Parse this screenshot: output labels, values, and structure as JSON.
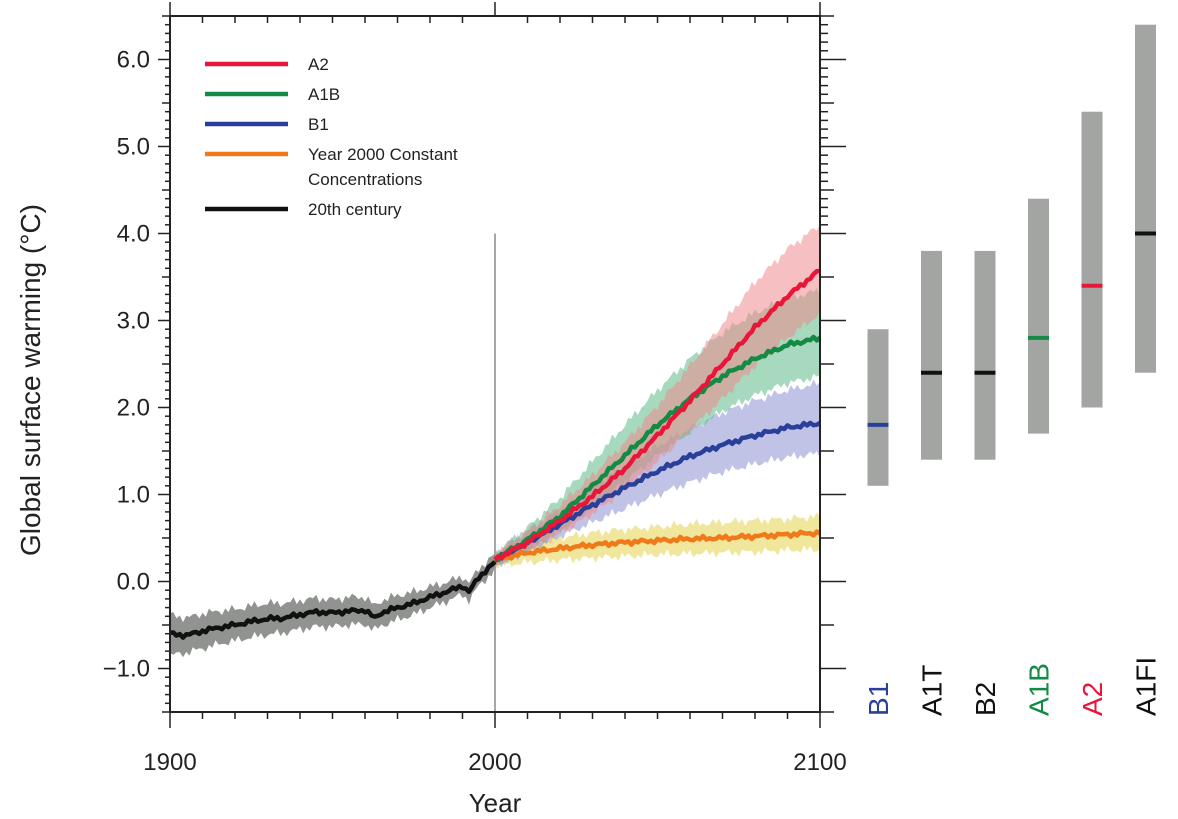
{
  "chart_data": {
    "type": "line",
    "title": "",
    "xlabel": "Year",
    "ylabel": "Global surface warming (°C)",
    "xlim": [
      1900,
      2100
    ],
    "ylim": [
      -1.5,
      6.5
    ],
    "x_ticks": [
      1900,
      2000,
      2100
    ],
    "y_ticks": [
      -1.0,
      0.0,
      1.0,
      2.0,
      3.0,
      4.0,
      5.0,
      6.0
    ],
    "y_tick_labels": [
      "−1.0",
      "0.0",
      "1.0",
      "2.0",
      "3.0",
      "4.0",
      "5.0",
      "6.0"
    ],
    "vertical_marker_year": 2000,
    "legend": [
      {
        "name": "A2",
        "color": "#e8173a"
      },
      {
        "name": "A1B",
        "color": "#148a44"
      },
      {
        "name": "B1",
        "color": "#2a3f99"
      },
      {
        "name": "Year 2000 Constant Concentrations",
        "lines": [
          "Year 2000 Constant",
          "Concentrations"
        ],
        "color": "#f07a1a"
      },
      {
        "name": "20th century",
        "color": "#111111"
      }
    ],
    "series": [
      {
        "name": "20th century",
        "color": "#111111",
        "band_color": "#8a8d8a",
        "x": [
          1900,
          1905,
          1910,
          1915,
          1920,
          1925,
          1930,
          1935,
          1940,
          1945,
          1950,
          1955,
          1960,
          1963,
          1965,
          1970,
          1975,
          1980,
          1985,
          1990,
          1992,
          1995,
          2000
        ],
        "values": [
          -0.6,
          -0.62,
          -0.57,
          -0.53,
          -0.5,
          -0.46,
          -0.43,
          -0.42,
          -0.38,
          -0.35,
          -0.36,
          -0.34,
          -0.33,
          -0.42,
          -0.36,
          -0.3,
          -0.25,
          -0.18,
          -0.12,
          -0.05,
          -0.12,
          0.05,
          0.22
        ],
        "lower": [
          -0.85,
          -0.82,
          -0.77,
          -0.72,
          -0.68,
          -0.64,
          -0.61,
          -0.59,
          -0.55,
          -0.52,
          -0.52,
          -0.5,
          -0.49,
          -0.56,
          -0.51,
          -0.44,
          -0.38,
          -0.3,
          -0.23,
          -0.15,
          -0.22,
          -0.05,
          0.13
        ],
        "upper": [
          -0.38,
          -0.42,
          -0.37,
          -0.34,
          -0.32,
          -0.28,
          -0.25,
          -0.25,
          -0.22,
          -0.19,
          -0.21,
          -0.18,
          -0.18,
          -0.28,
          -0.22,
          -0.16,
          -0.12,
          -0.06,
          -0.01,
          0.06,
          -0.02,
          0.15,
          0.31
        ]
      },
      {
        "name": "Year 2000 Constant Concentrations",
        "color": "#f07a1a",
        "band_color": "#e3d24a",
        "x": [
          2000,
          2010,
          2020,
          2030,
          2040,
          2050,
          2060,
          2070,
          2080,
          2090,
          2100
        ],
        "values": [
          0.25,
          0.33,
          0.38,
          0.42,
          0.45,
          0.47,
          0.49,
          0.5,
          0.52,
          0.54,
          0.56
        ],
        "lower": [
          0.18,
          0.22,
          0.25,
          0.27,
          0.29,
          0.31,
          0.32,
          0.33,
          0.34,
          0.36,
          0.37
        ],
        "upper": [
          0.32,
          0.44,
          0.5,
          0.56,
          0.6,
          0.63,
          0.66,
          0.68,
          0.7,
          0.72,
          0.75
        ]
      },
      {
        "name": "B1",
        "color": "#2a3f99",
        "band_color": "#8c92cf",
        "x": [
          2000,
          2010,
          2020,
          2030,
          2040,
          2050,
          2060,
          2070,
          2080,
          2090,
          2100
        ],
        "values": [
          0.25,
          0.45,
          0.66,
          0.88,
          1.08,
          1.27,
          1.44,
          1.57,
          1.68,
          1.77,
          1.82
        ],
        "lower": [
          0.18,
          0.34,
          0.52,
          0.68,
          0.84,
          1.0,
          1.14,
          1.26,
          1.35,
          1.43,
          1.47
        ],
        "upper": [
          0.33,
          0.58,
          0.82,
          1.08,
          1.33,
          1.56,
          1.76,
          1.94,
          2.08,
          2.2,
          2.28
        ]
      },
      {
        "name": "A1B",
        "color": "#148a44",
        "band_color": "#5dba86",
        "x": [
          2000,
          2010,
          2020,
          2030,
          2040,
          2050,
          2060,
          2070,
          2080,
          2090,
          2100
        ],
        "values": [
          0.25,
          0.48,
          0.75,
          1.1,
          1.45,
          1.8,
          2.1,
          2.36,
          2.56,
          2.72,
          2.8
        ],
        "lower": [
          0.18,
          0.36,
          0.58,
          0.86,
          1.15,
          1.45,
          1.72,
          1.96,
          2.14,
          2.28,
          2.36
        ],
        "upper": [
          0.33,
          0.62,
          0.96,
          1.38,
          1.8,
          2.2,
          2.56,
          2.86,
          3.09,
          3.25,
          3.35
        ]
      },
      {
        "name": "A2",
        "color": "#e8173a",
        "band_color": "#ef8a8e",
        "x": [
          2000,
          2010,
          2020,
          2030,
          2040,
          2050,
          2060,
          2070,
          2080,
          2090,
          2100
        ],
        "values": [
          0.25,
          0.45,
          0.7,
          0.98,
          1.3,
          1.68,
          2.08,
          2.5,
          2.92,
          3.28,
          3.58
        ],
        "lower": [
          0.18,
          0.35,
          0.55,
          0.78,
          1.05,
          1.38,
          1.74,
          2.1,
          2.48,
          2.8,
          3.08
        ],
        "upper": [
          0.33,
          0.58,
          0.88,
          1.22,
          1.6,
          2.02,
          2.48,
          2.96,
          3.44,
          3.82,
          4.1
        ]
      }
    ],
    "range_bars": [
      {
        "name": "B1",
        "low": 1.1,
        "high": 2.9,
        "best": 1.8,
        "best_color": "#2a3f99",
        "label_color": "#2a3f99"
      },
      {
        "name": "A1T",
        "low": 1.4,
        "high": 3.8,
        "best": 2.4,
        "best_color": "#111111",
        "label_color": "#111111"
      },
      {
        "name": "B2",
        "low": 1.4,
        "high": 3.8,
        "best": 2.4,
        "best_color": "#111111",
        "label_color": "#111111"
      },
      {
        "name": "A1B",
        "low": 1.7,
        "high": 4.4,
        "best": 2.8,
        "best_color": "#148a44",
        "label_color": "#148a44"
      },
      {
        "name": "A2",
        "low": 2.0,
        "high": 5.4,
        "best": 3.4,
        "best_color": "#e8173a",
        "label_color": "#e8173a"
      },
      {
        "name": "A1FI",
        "low": 2.4,
        "high": 6.4,
        "best": 4.0,
        "best_color": "#111111",
        "label_color": "#111111"
      }
    ],
    "range_bar_color": "#a3a5a3"
  }
}
